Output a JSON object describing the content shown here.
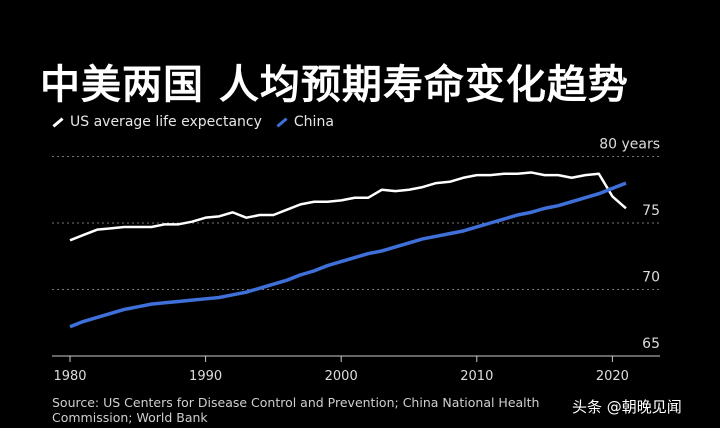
{
  "chart_data": {
    "type": "line",
    "title": "中美两国 人均预期寿命变化趋势",
    "ylim": [
      65,
      80
    ],
    "xlim": [
      1978.5,
      2023
    ],
    "y_ticks": [
      "65",
      "70",
      "75",
      "80 years"
    ],
    "y_tick_values": [
      65,
      70,
      75,
      80
    ],
    "x_ticks": [
      "1980",
      "1990",
      "2000",
      "2010",
      "2020"
    ],
    "x_tick_values": [
      1980,
      1990,
      2000,
      2010,
      2020
    ],
    "grid": "horizontal dotted",
    "legend_position": "top-left",
    "x": [
      1980,
      1981,
      1982,
      1983,
      1984,
      1985,
      1986,
      1987,
      1988,
      1989,
      1990,
      1991,
      1992,
      1993,
      1994,
      1995,
      1996,
      1997,
      1998,
      1999,
      2000,
      2001,
      2002,
      2003,
      2004,
      2005,
      2006,
      2007,
      2008,
      2009,
      2010,
      2011,
      2012,
      2013,
      2014,
      2015,
      2016,
      2017,
      2018,
      2019,
      2020,
      2021
    ],
    "series": [
      {
        "name": "US average life expectancy",
        "color": "#ffffff",
        "values": [
          73.7,
          74.1,
          74.5,
          74.6,
          74.7,
          74.7,
          74.7,
          74.9,
          74.9,
          75.1,
          75.4,
          75.5,
          75.8,
          75.4,
          75.6,
          75.6,
          76.0,
          76.4,
          76.6,
          76.6,
          76.7,
          76.9,
          76.9,
          77.5,
          77.4,
          77.5,
          77.7,
          78.0,
          78.1,
          78.4,
          78.6,
          78.6,
          78.7,
          78.7,
          78.8,
          78.6,
          78.6,
          78.4,
          78.6,
          78.7,
          77.0,
          76.1
        ]
      },
      {
        "name": "China",
        "color": "#3f6fd8",
        "values": [
          67.2,
          67.6,
          67.9,
          68.2,
          68.5,
          68.7,
          68.9,
          69.0,
          69.1,
          69.2,
          69.3,
          69.4,
          69.6,
          69.8,
          70.1,
          70.4,
          70.7,
          71.1,
          71.4,
          71.8,
          72.1,
          72.4,
          72.7,
          72.9,
          73.2,
          73.5,
          73.8,
          74.0,
          74.2,
          74.4,
          74.7,
          75.0,
          75.3,
          75.6,
          75.8,
          76.1,
          76.3,
          76.6,
          76.9,
          77.2,
          77.6,
          78.0
        ]
      }
    ]
  },
  "source": "Source: US Centers for Disease Control and Prevention; China National Health Commission; World Bank",
  "watermark": "头条 @朝晚见闻"
}
